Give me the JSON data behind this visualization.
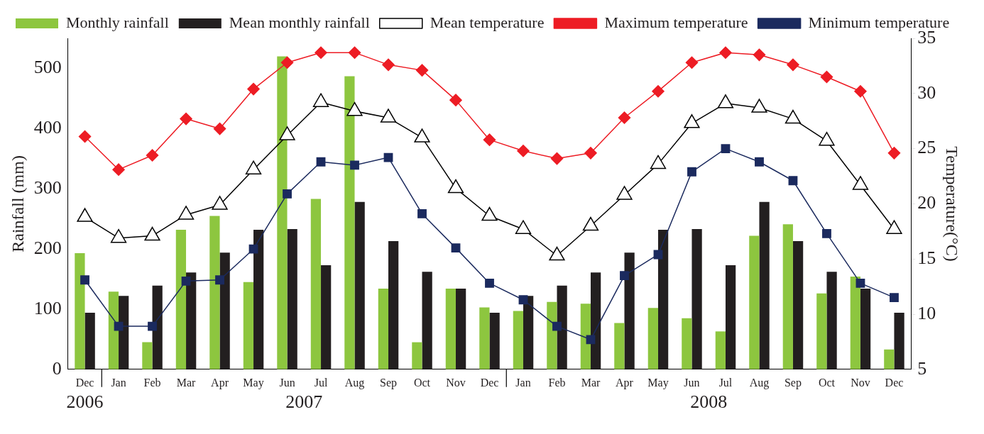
{
  "chart_data": {
    "type": "bar",
    "categories": [
      "Dec",
      "Jan",
      "Feb",
      "Mar",
      "Apr",
      "May",
      "Jun",
      "Jul",
      "Aug",
      "Sep",
      "Oct",
      "Nov",
      "Dec",
      "Jan",
      "Feb",
      "Mar",
      "Apr",
      "May",
      "Jun",
      "Jul",
      "Aug",
      "Sep",
      "Oct",
      "Nov",
      "Dec"
    ],
    "ylabel": "Rainfall (mm)",
    "y2label": "Temperature(°C)",
    "ylim": [
      0,
      550
    ],
    "yticks": [
      0,
      100,
      200,
      300,
      400,
      500
    ],
    "y2lim": [
      5,
      35
    ],
    "y2ticks": [
      5,
      10,
      15,
      20,
      25,
      30,
      35
    ],
    "grid": false,
    "legend": "top",
    "annotations": [
      "2006",
      "2007",
      "2008"
    ],
    "series": [
      {
        "name": "Monthly rainfall",
        "color": "#8dc63f",
        "values": [
          193,
          129,
          45,
          232,
          255,
          145,
          520,
          283,
          487,
          134,
          45,
          134,
          103,
          97,
          112,
          109,
          77,
          102,
          85,
          63,
          222,
          241,
          126,
          154,
          33
        ]
      },
      {
        "name": "Mean monthly rainfall",
        "color": "#231f20",
        "values": [
          94,
          122,
          139,
          161,
          194,
          232,
          233,
          173,
          278,
          213,
          162,
          134,
          94,
          122,
          139,
          161,
          194,
          232,
          233,
          173,
          278,
          213,
          162,
          134,
          94
        ]
      },
      {
        "name": "Mean temperature",
        "type": "line",
        "axis": "y2",
        "marker": "triangle",
        "color": "#000000",
        "values": [
          18.8,
          16.9,
          17.1,
          19.0,
          19.9,
          23.1,
          26.2,
          29.2,
          28.4,
          27.8,
          26.0,
          21.4,
          18.9,
          17.7,
          15.3,
          18.0,
          20.8,
          23.6,
          27.3,
          29.1,
          28.7,
          27.7,
          25.7,
          21.7,
          17.7
        ]
      },
      {
        "name": "Maximum temperature",
        "type": "line",
        "axis": "y2",
        "marker": "diamond",
        "color": "#ed1c24",
        "values": [
          26.1,
          23.1,
          24.4,
          27.7,
          26.8,
          30.4,
          32.8,
          33.7,
          33.7,
          32.6,
          32.1,
          29.4,
          25.8,
          24.8,
          24.1,
          24.6,
          27.8,
          30.2,
          32.8,
          33.7,
          33.5,
          32.6,
          31.5,
          30.2,
          24.6
        ]
      },
      {
        "name": "Minimum temperature",
        "type": "line",
        "axis": "y2",
        "marker": "square",
        "color": "#1b2a5e",
        "values": [
          13.1,
          8.9,
          8.9,
          13.0,
          13.1,
          15.9,
          20.9,
          23.8,
          23.5,
          24.2,
          19.1,
          16.0,
          12.8,
          11.3,
          8.9,
          7.7,
          13.5,
          15.4,
          22.9,
          25.0,
          23.8,
          22.1,
          17.3,
          12.8,
          11.5
        ]
      }
    ]
  }
}
